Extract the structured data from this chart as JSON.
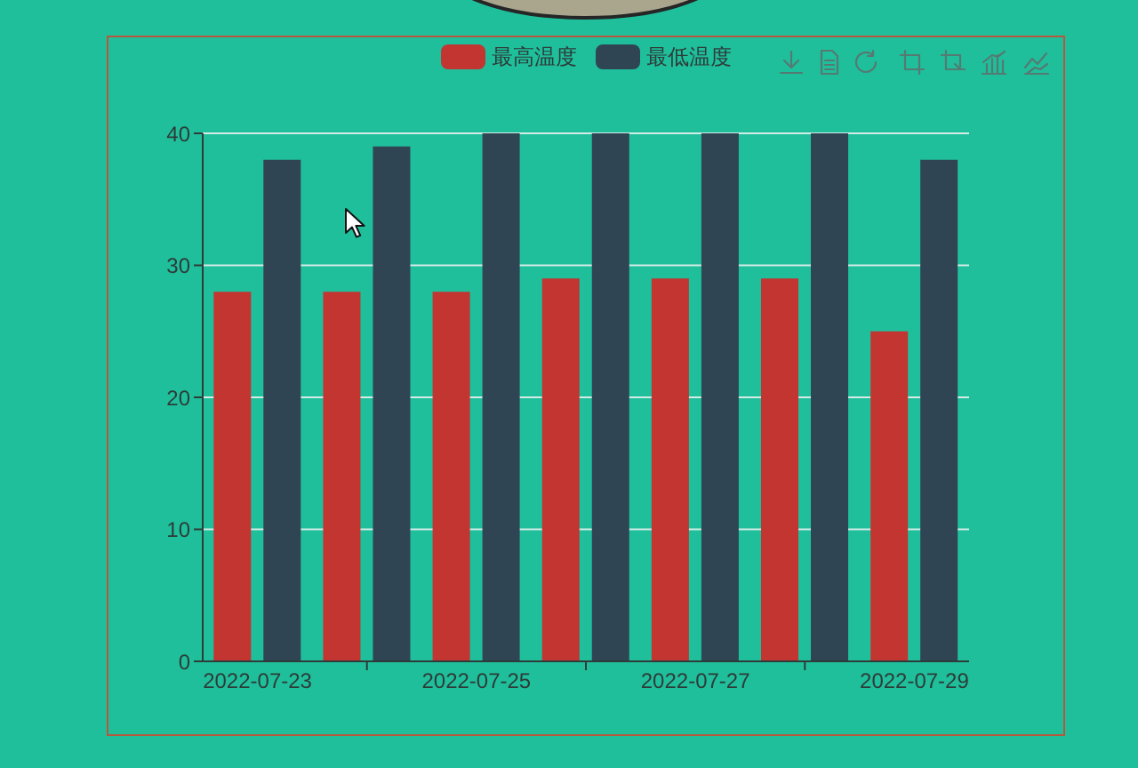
{
  "chart_data": {
    "type": "bar",
    "categories": [
      "2022-07-23",
      null,
      "2022-07-25",
      null,
      "2022-07-27",
      null,
      "2022-07-29"
    ],
    "series": [
      {
        "name": "最高温度",
        "color": "#c23531",
        "values": [
          28,
          28,
          28,
          29,
          29,
          29,
          25
        ]
      },
      {
        "name": "最低温度",
        "color": "#2f4554",
        "values": [
          38,
          39,
          40,
          40,
          40,
          40,
          38
        ]
      }
    ],
    "ylim": [
      0,
      40
    ],
    "yticks": [
      0,
      10,
      20,
      30,
      40
    ],
    "grid": "y",
    "legend": "top"
  }
}
